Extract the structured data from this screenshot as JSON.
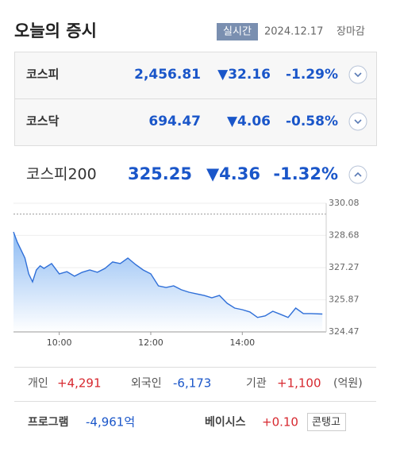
{
  "header": {
    "title": "오늘의 증시",
    "badge": "실시간",
    "date": "2024.12.17",
    "status": "장마감"
  },
  "indices": [
    {
      "name": "코스피",
      "value": "2,456.81",
      "change": "▼32.16",
      "rate": "-1.29%"
    },
    {
      "name": "코스닥",
      "value": "694.47",
      "change": "▼4.06",
      "rate": "-0.58%"
    }
  ],
  "kospi200": {
    "name": "코스피200",
    "value": "325.25",
    "change": "▼4.36",
    "rate": "-1.32%"
  },
  "chart_data": {
    "type": "line",
    "color": "#2f6fd8",
    "reference": 329.61,
    "x": [
      540,
      545,
      550,
      555,
      560,
      565,
      570,
      575,
      580,
      590,
      600,
      610,
      620,
      630,
      640,
      650,
      660,
      670,
      680,
      690,
      700,
      710,
      720,
      730,
      740,
      750,
      760,
      770,
      780,
      790,
      800,
      810,
      820,
      830,
      840,
      850,
      860,
      870,
      880,
      890,
      900,
      910,
      920,
      930,
      945
    ],
    "values": [
      328.83,
      328.38,
      328.04,
      327.69,
      327.0,
      326.65,
      327.17,
      327.35,
      327.24,
      327.45,
      327.0,
      327.1,
      326.9,
      327.07,
      327.17,
      327.07,
      327.24,
      327.52,
      327.45,
      327.69,
      327.41,
      327.17,
      327.0,
      326.48,
      326.41,
      326.48,
      326.31,
      326.2,
      326.13,
      326.06,
      325.96,
      326.06,
      325.72,
      325.51,
      325.44,
      325.34,
      325.1,
      325.17,
      325.37,
      325.24,
      325.1,
      325.51,
      325.27,
      325.27,
      325.25
    ],
    "xlim": [
      540,
      950
    ],
    "xticks": [
      {
        "value": 600,
        "label": "10:00"
      },
      {
        "value": 720,
        "label": "12:00"
      },
      {
        "value": 840,
        "label": "14:00"
      }
    ],
    "ylim": [
      324.47,
      330.08
    ],
    "yticks": [
      324.47,
      325.87,
      327.27,
      328.68,
      330.08
    ]
  },
  "investors": {
    "items": [
      {
        "label": "개인",
        "value": "+4,291"
      },
      {
        "label": "외국인",
        "value": "-6,173"
      },
      {
        "label": "기관",
        "value": "+1,100"
      }
    ],
    "unit": "(억원)"
  },
  "program": {
    "label": "프로그램",
    "value": "-4,961억"
  },
  "basis": {
    "label": "베이시스",
    "value": "+0.10",
    "tag": "콘탱고"
  }
}
